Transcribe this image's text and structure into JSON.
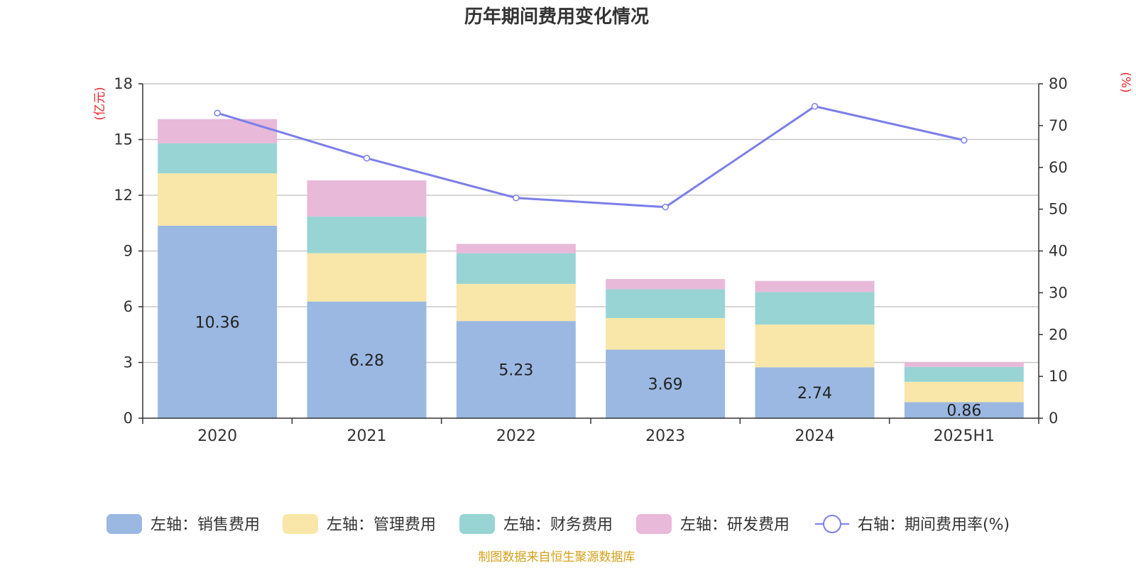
{
  "chart_data": {
    "type": "bar",
    "stacked": true,
    "title": "历年期间费用变化情况",
    "categories": [
      "2020",
      "2021",
      "2022",
      "2023",
      "2024",
      "2025H1"
    ],
    "y_left": {
      "unit": "(亿元)",
      "ylim": [
        0,
        18
      ],
      "ticks": [
        0,
        3,
        6,
        9,
        12,
        15,
        18
      ]
    },
    "y_right": {
      "unit": "(%)",
      "ylim": [
        0,
        80
      ],
      "ticks": [
        0,
        10,
        20,
        30,
        40,
        50,
        60,
        70,
        80
      ]
    },
    "grid": true,
    "legend_position": "bottom",
    "series": [
      {
        "name": "左轴：销售费用",
        "axis": "left",
        "type": "bar",
        "color": "#9bb8e2",
        "values": [
          10.36,
          6.28,
          5.23,
          3.69,
          2.74,
          0.86
        ],
        "show_labels": true
      },
      {
        "name": "左轴：管理费用",
        "axis": "left",
        "type": "bar",
        "color": "#f8e7a8",
        "values": [
          2.82,
          2.6,
          2.0,
          1.7,
          2.3,
          1.1
        ]
      },
      {
        "name": "左轴：财务费用",
        "axis": "left",
        "type": "bar",
        "color": "#98d4d4",
        "values": [
          1.62,
          1.97,
          1.65,
          1.55,
          1.75,
          0.8
        ]
      },
      {
        "name": "左轴：研发费用",
        "axis": "left",
        "type": "bar",
        "color": "#e8b9d9",
        "values": [
          1.3,
          1.95,
          0.5,
          0.55,
          0.6,
          0.25
        ]
      },
      {
        "name": "右轴：期间费用率(%)",
        "axis": "right",
        "type": "line",
        "color": "#7b7fe8",
        "values": [
          73.0,
          62.2,
          52.7,
          50.5,
          74.6,
          66.5
        ]
      }
    ]
  },
  "footer": {
    "source": "制图数据来自恒生聚源数据库"
  }
}
